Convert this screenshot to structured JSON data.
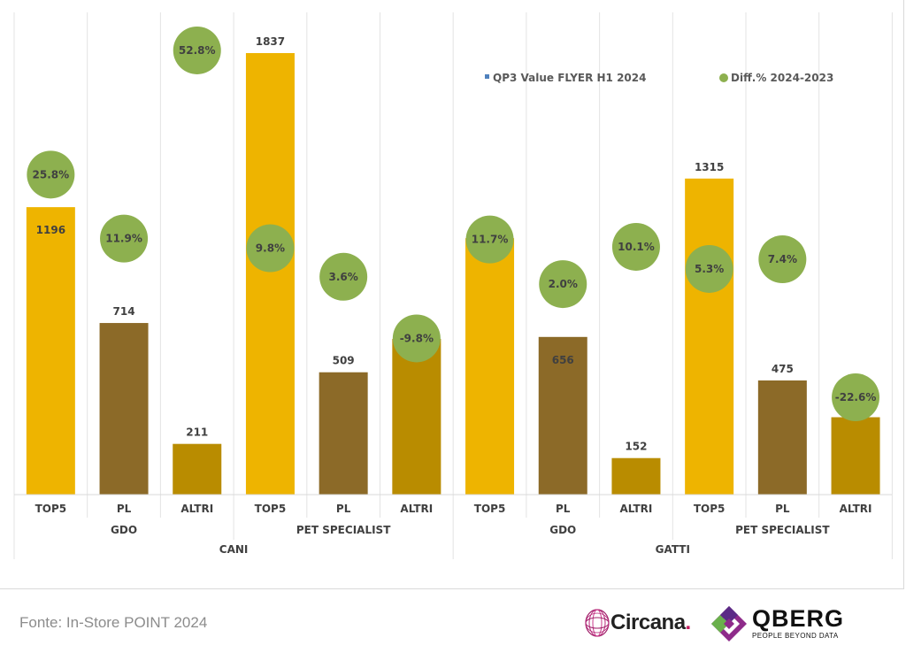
{
  "chart_data": {
    "type": "bar",
    "categories": [
      {
        "label": "TOP5",
        "group": "GDO",
        "species": "CANI",
        "value": 1196,
        "diff": "25.8%",
        "diff_num": 25.8,
        "color": "#eeb400"
      },
      {
        "label": "PL",
        "group": "GDO",
        "species": "CANI",
        "value": 714,
        "diff": "11.9%",
        "diff_num": 11.9,
        "color": "#8c6a28"
      },
      {
        "label": "ALTRI",
        "group": "GDO",
        "species": "CANI",
        "value": 211,
        "diff": "52.8%",
        "diff_num": 52.8,
        "color": "#b98c00"
      },
      {
        "label": "TOP5",
        "group": "PET SPECIALIST",
        "species": "CANI",
        "value": 1837,
        "diff": "9.8%",
        "diff_num": 9.8,
        "color": "#eeb400"
      },
      {
        "label": "PL",
        "group": "PET SPECIALIST",
        "species": "CANI",
        "value": 509,
        "diff": "3.6%",
        "diff_num": 3.6,
        "color": "#8c6a28"
      },
      {
        "label": "ALTRI",
        "group": "PET SPECIALIST",
        "species": "CANI",
        "value": 648,
        "diff": "-9.8%",
        "diff_num": -9.8,
        "color": "#b98c00"
      },
      {
        "label": "TOP5",
        "group": "GDO",
        "species": "GATTI",
        "value": 1067,
        "diff": "11.7%",
        "diff_num": 11.7,
        "color": "#eeb400"
      },
      {
        "label": "PL",
        "group": "GDO",
        "species": "GATTI",
        "value": 656,
        "diff": "2.0%",
        "diff_num": 2.0,
        "color": "#8c6a28"
      },
      {
        "label": "ALTRI",
        "group": "GDO",
        "species": "GATTI",
        "value": 152,
        "diff": "10.1%",
        "diff_num": 10.1,
        "color": "#b98c00"
      },
      {
        "label": "TOP5",
        "group": "PET SPECIALIST",
        "species": "GATTI",
        "value": 1315,
        "diff": "5.3%",
        "diff_num": 5.3,
        "color": "#eeb400"
      },
      {
        "label": "PL",
        "group": "PET SPECIALIST",
        "species": "GATTI",
        "value": 475,
        "diff": "7.4%",
        "diff_num": 7.4,
        "color": "#8c6a28"
      },
      {
        "label": "ALTRI",
        "group": "PET SPECIALIST",
        "species": "GATTI",
        "value": 322,
        "diff": "-22.6%",
        "diff_num": -22.6,
        "color": "#b98c00"
      }
    ],
    "groups": [
      {
        "label": "GDO"
      },
      {
        "label": "PET SPECIALIST"
      },
      {
        "label": "GDO"
      },
      {
        "label": "PET SPECIALIST"
      }
    ],
    "species": [
      {
        "label": "CANI"
      },
      {
        "label": "GATTI"
      }
    ],
    "series": [
      {
        "name": "QP3 Value FLYER H1 2024",
        "kind": "bar",
        "color": "#4f81bd"
      },
      {
        "name": "Diff.% 2024-2023",
        "kind": "marker",
        "color": "#8db04f"
      }
    ],
    "legend_position": "top-right",
    "grid": false,
    "ylim_bars": [
      0,
      1837
    ]
  },
  "footer": {
    "source": "Fonte: In-Store POINT 2024",
    "circana_logo": "Circana",
    "circana_dot": ".",
    "qberg_logo": "QBERG",
    "qberg_tagline": "PEOPLE BEYOND DATA"
  }
}
